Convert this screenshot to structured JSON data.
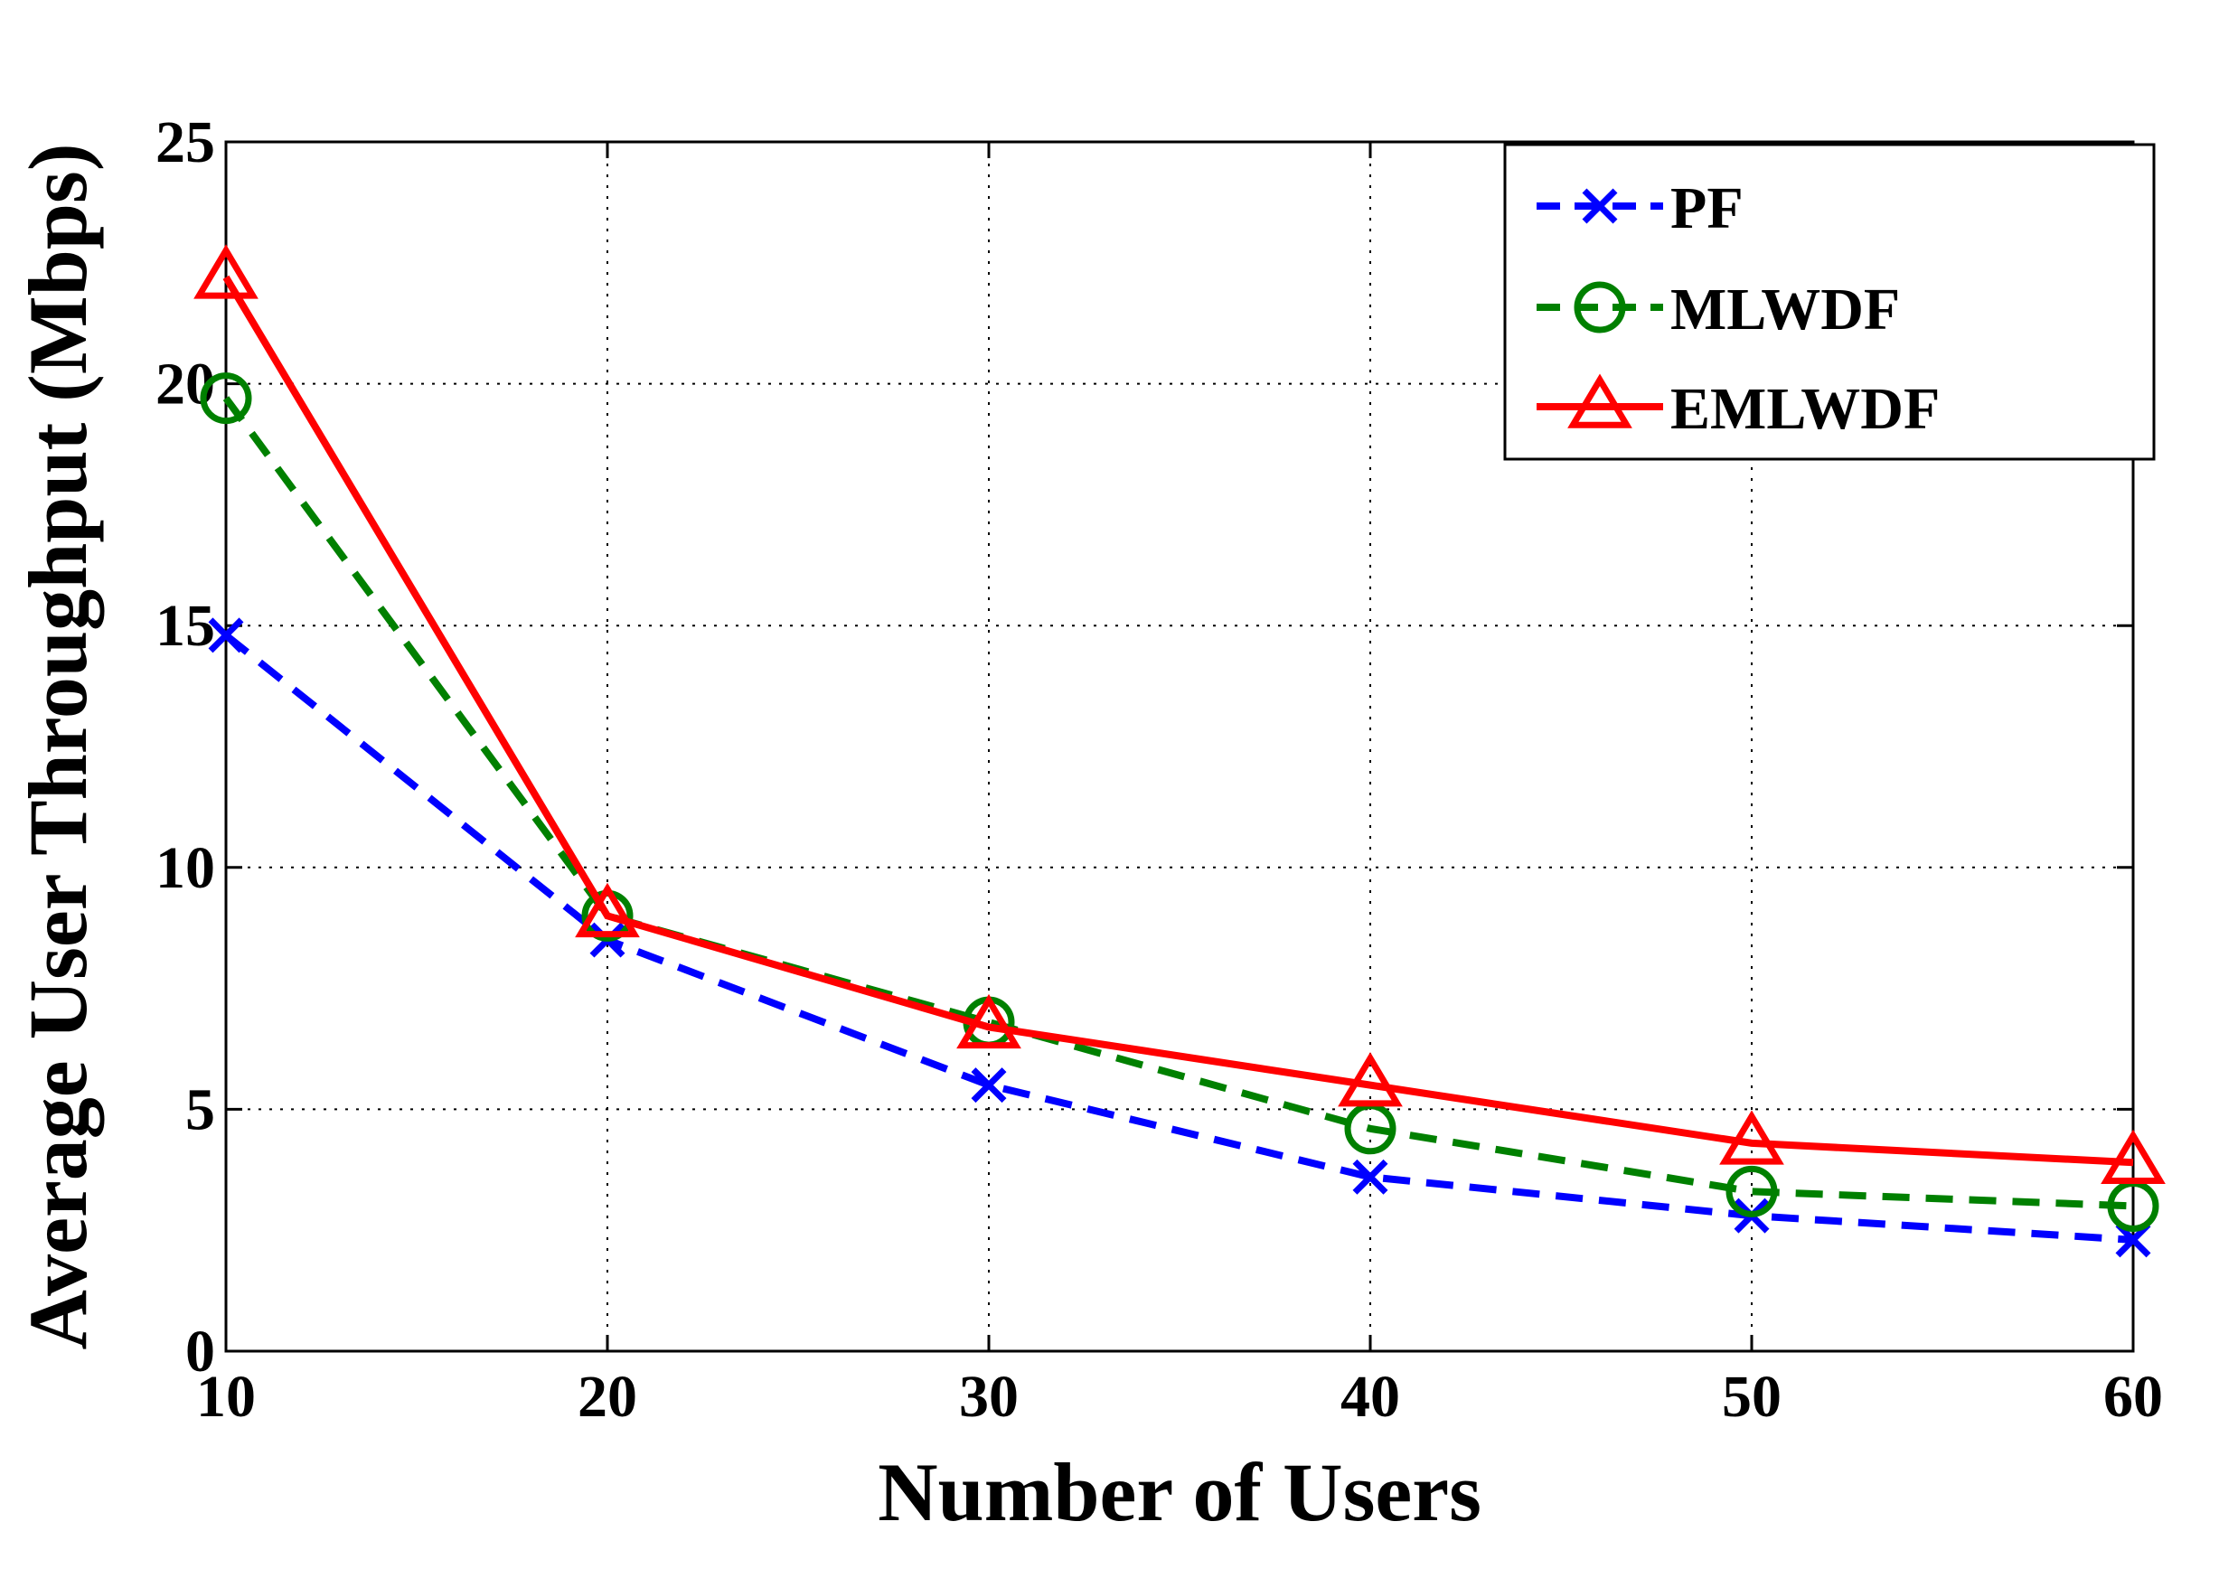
{
  "chart_data": {
    "type": "line",
    "title": "",
    "xlabel": "Number of Users",
    "ylabel": "Average User Throughput (Mbps)",
    "xlim": [
      10,
      60
    ],
    "ylim": [
      0,
      25
    ],
    "xticks": [
      10,
      20,
      30,
      40,
      50,
      60
    ],
    "yticks": [
      0,
      5,
      10,
      15,
      20,
      25
    ],
    "grid": true,
    "legend_position": "top-right",
    "x": [
      10,
      20,
      30,
      40,
      50,
      60
    ],
    "series": [
      {
        "name": "PF",
        "color": "#0000ff",
        "line_style": "dashed",
        "marker": "x",
        "values": [
          14.8,
          8.5,
          5.5,
          3.6,
          2.8,
          2.3
        ]
      },
      {
        "name": "MLWDF",
        "color": "#008000",
        "line_style": "dashed",
        "marker": "circle",
        "values": [
          19.7,
          9.0,
          6.8,
          4.6,
          3.3,
          3.0
        ]
      },
      {
        "name": "EMLWDF",
        "color": "#ff0000",
        "line_style": "solid",
        "marker": "triangle",
        "values": [
          22.2,
          9.0,
          6.7,
          5.5,
          4.3,
          3.9
        ]
      }
    ]
  }
}
